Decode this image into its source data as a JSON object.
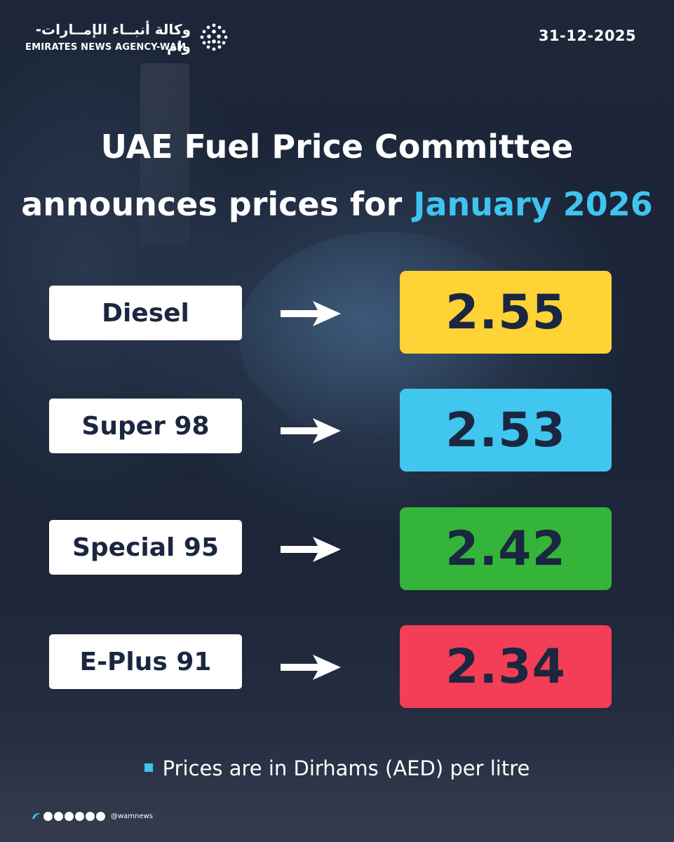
{
  "brand": {
    "name_arabic": "وكالة أنبــاء الإمــارات-وام",
    "name_english": "EMIRATES NEWS AGENCY-WAM",
    "icon": "wam-logo-icon"
  },
  "date": "31-12-2025",
  "title": {
    "line1": "UAE Fuel Price Committee",
    "line2_prefix": "announces prices for ",
    "line2_highlight": "January 2026",
    "highlight_color": "#3fc4ef"
  },
  "fuels": [
    {
      "label": "Diesel",
      "price": "2.55",
      "color": "#fdd336"
    },
    {
      "label": "Super 98",
      "price": "2.53",
      "color": "#40c6ef"
    },
    {
      "label": "Special 95",
      "price": "2.42",
      "color": "#34b53a"
    },
    {
      "label": "E-Plus 91",
      "price": "2.34",
      "color": "#f43d56"
    }
  ],
  "note": {
    "text": "Prices are in Dirhams (AED) per litre",
    "bullet_color": "#3fc4ef"
  },
  "social": {
    "icons": [
      "x-icon",
      "youtube-icon",
      "instagram-icon",
      "facebook-icon",
      "tiktok-icon",
      "threads-icon"
    ],
    "handle": "@wamnews"
  }
}
